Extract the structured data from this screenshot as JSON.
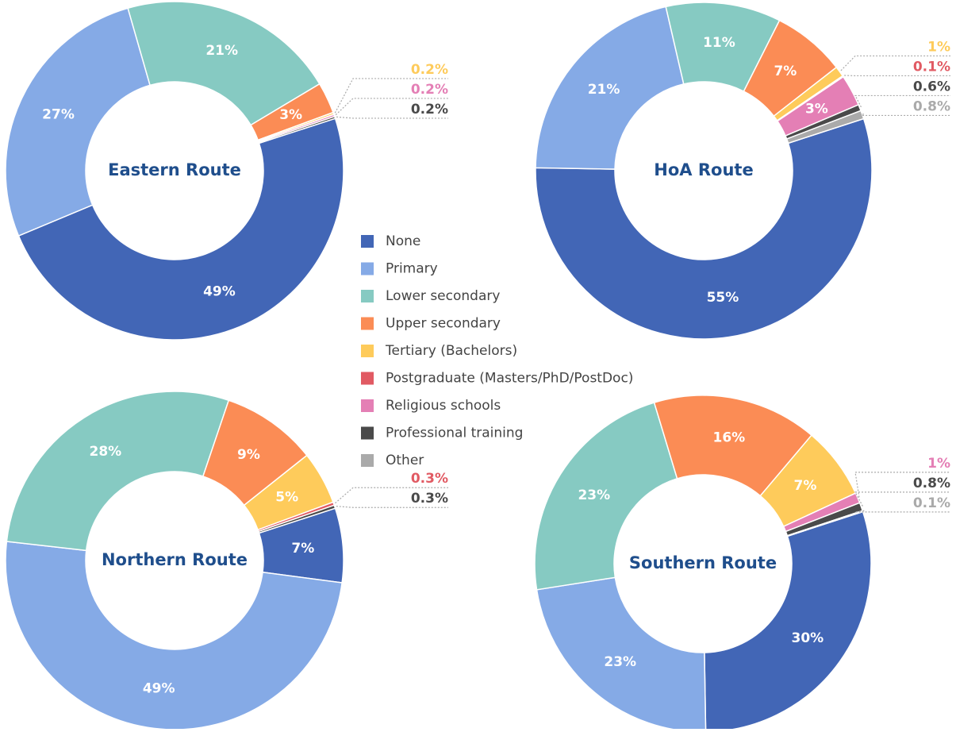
{
  "legend": {
    "categories": [
      "None",
      "Primary",
      "Lower secondary",
      "Upper secondary",
      "Tertiary (Bachelors)",
      "Postgraduate (Masters/PhD/PostDoc)",
      "Religious schools",
      "Professional training",
      "Other"
    ],
    "colors": [
      "#4266b6",
      "#85aae6",
      "#86cac2",
      "#fb8c55",
      "#fecb5b",
      "#e15a63",
      "#e47fb5",
      "#4a4a4a",
      "#aaaaaa"
    ]
  },
  "chart_data": [
    {
      "type": "pie",
      "title": "Eastern Route",
      "values": [
        49,
        27,
        21,
        3,
        0.2,
        null,
        0.2,
        0.2,
        null
      ],
      "value_labels": [
        "49%",
        "27%",
        "21%",
        "3%",
        "0.2%",
        null,
        "0.2%",
        "0.2%",
        null
      ]
    },
    {
      "type": "pie",
      "title": "HoA Route",
      "values": [
        55,
        21,
        11,
        7,
        1,
        0.1,
        3,
        0.6,
        0.8
      ],
      "value_labels": [
        "55%",
        "21%",
        "11%",
        "7%",
        "1%",
        "0.1%",
        "3%",
        "0.6%",
        "0.8%"
      ]
    },
    {
      "type": "pie",
      "title": "Northern Route",
      "values": [
        7,
        49,
        28,
        9,
        5,
        0.3,
        null,
        0.3,
        null
      ],
      "value_labels": [
        "7%",
        "49%",
        "28%",
        "9%",
        "5%",
        "0.3%",
        null,
        "0.3%",
        null
      ]
    },
    {
      "type": "pie",
      "title": "Southern Route",
      "values": [
        30,
        23,
        23,
        16,
        7,
        null,
        1,
        0.8,
        0.1
      ],
      "value_labels": [
        "30%",
        "23%",
        "23%",
        "16%",
        "7%",
        null,
        "1%",
        "0.8%",
        "0.1%"
      ]
    }
  ]
}
